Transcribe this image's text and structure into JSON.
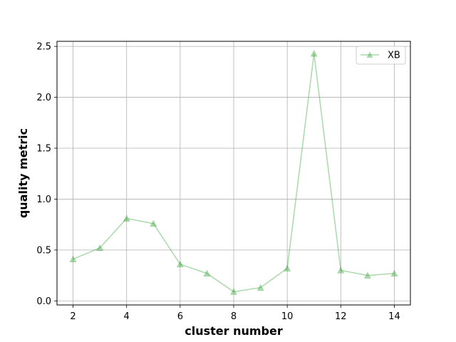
{
  "chart_data": {
    "type": "line",
    "title": "",
    "xlabel": "cluster number",
    "ylabel": "quality metric",
    "xlim": [
      1.4,
      14.6
    ],
    "ylim": [
      -0.04,
      2.55
    ],
    "xticks": [
      2,
      4,
      6,
      8,
      10,
      12,
      14
    ],
    "yticks": [
      0.0,
      0.5,
      1.0,
      1.5,
      2.0,
      2.5
    ],
    "ytick_labels": [
      "0.0",
      "0.5",
      "1.0",
      "1.5",
      "2.0",
      "2.5"
    ],
    "grid": true,
    "legend_position": "top-right",
    "x": [
      2,
      3,
      4,
      5,
      6,
      7,
      8,
      9,
      10,
      11,
      12,
      13,
      14
    ],
    "series": [
      {
        "name": "XB",
        "color": "#2ca02c",
        "marker": "triangle-up",
        "values": [
          0.41,
          0.52,
          0.81,
          0.76,
          0.36,
          0.27,
          0.09,
          0.13,
          0.32,
          2.43,
          0.3,
          0.25,
          0.27
        ]
      }
    ]
  }
}
